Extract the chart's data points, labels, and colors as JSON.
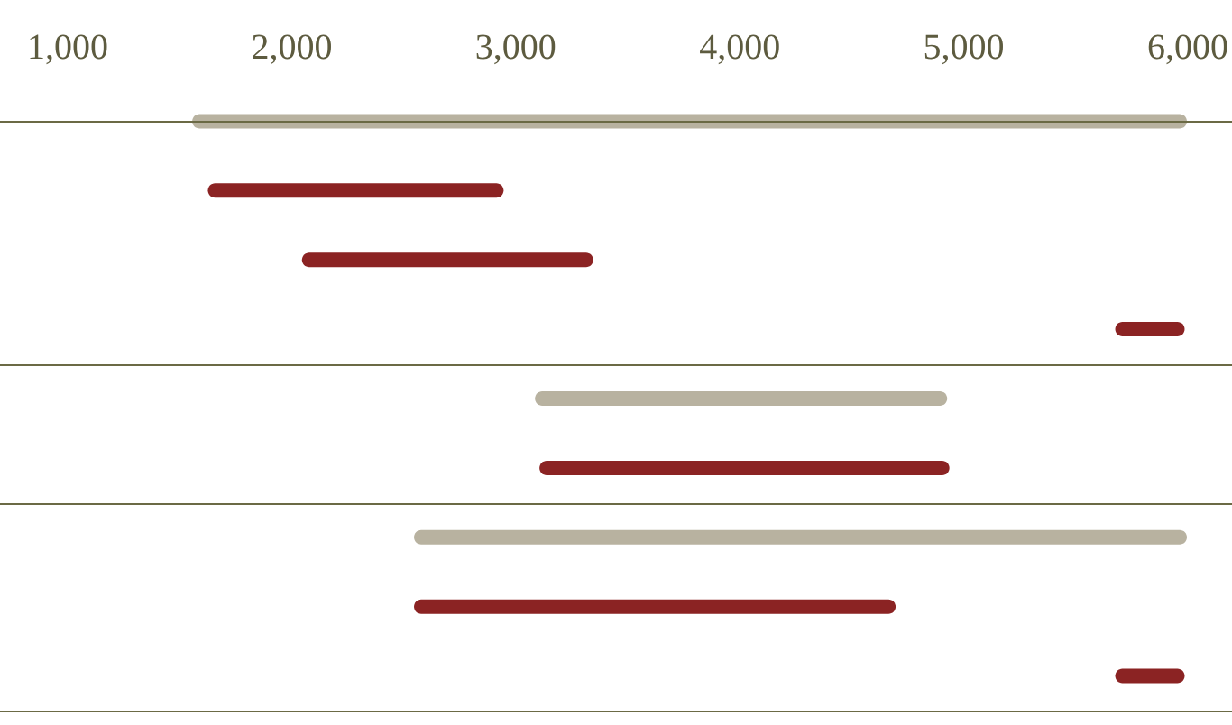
{
  "chart_data": {
    "type": "bar",
    "orientation": "horizontal",
    "categories": [
      null,
      null,
      null,
      null,
      null,
      null,
      null,
      null,
      null
    ],
    "base": [
      1560,
      1630,
      2050,
      5680,
      3090,
      3110,
      2550,
      2550,
      5680
    ],
    "values": [
      4440,
      1320,
      1300,
      310,
      1840,
      1830,
      3450,
      2150,
      310
    ],
    "colors": [
      "#b8b2a0",
      "#8b2323",
      "#8b2323",
      "#8b2323",
      "#b8b2a0",
      "#8b2323",
      "#b8b2a0",
      "#8b2323",
      "#8b2323"
    ],
    "xlim": [
      1000,
      6000
    ],
    "xticks": [
      {
        "value": 1000,
        "label": "1,000"
      },
      {
        "value": 2000,
        "label": "2,000"
      },
      {
        "value": 3000,
        "label": "3,000"
      },
      {
        "value": 4000,
        "label": "4,000"
      },
      {
        "value": 5000,
        "label": "5,000"
      },
      {
        "value": 6000,
        "label": "6,000"
      }
    ],
    "tick_labels": "x",
    "grid": false
  }
}
